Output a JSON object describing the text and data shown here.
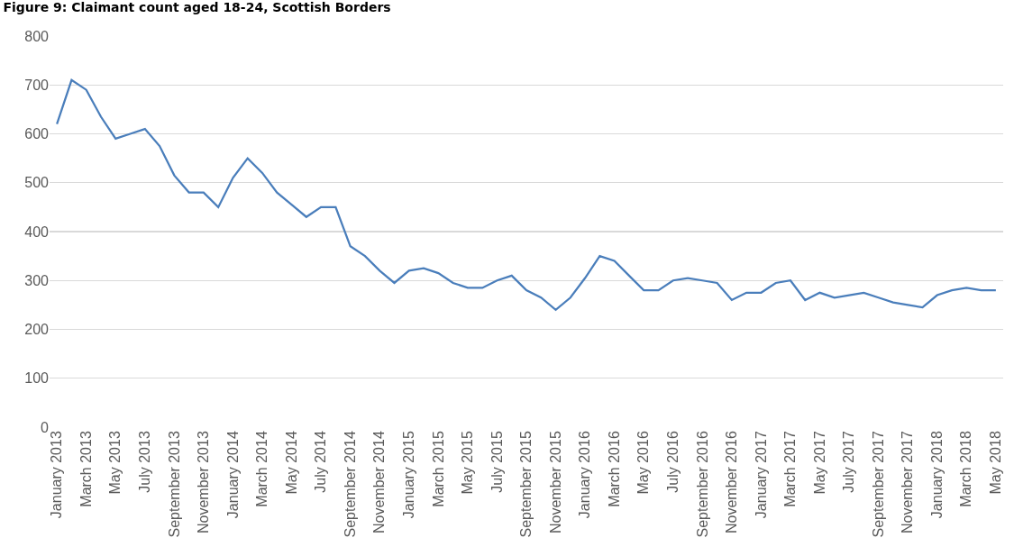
{
  "chart_data": {
    "type": "line",
    "title": "Figure 9: Claimant count aged 18-24, Scottish Borders",
    "categories": [
      "January 2013",
      null,
      "March 2013",
      null,
      "May 2013",
      null,
      "July 2013",
      null,
      "September 2013",
      null,
      "November 2013",
      null,
      "January 2014",
      null,
      "March 2014",
      null,
      "May 2014",
      null,
      "July 2014",
      null,
      "September 2014",
      null,
      "November 2014",
      null,
      "January 2015",
      null,
      "March 2015",
      null,
      "May 2015",
      null,
      "July 2015",
      null,
      "September 2015",
      null,
      "November 2015",
      null,
      "January 2016",
      null,
      "March 2016",
      null,
      "May 2016",
      null,
      "July 2016",
      null,
      "September 2016",
      null,
      "November 2016",
      null,
      "January 2017",
      null,
      "March 2017",
      null,
      "May 2017",
      null,
      "July 2017",
      null,
      "September 2017",
      null,
      "November 2017",
      null,
      "January 2018",
      null,
      "March 2018",
      null,
      "May 2018"
    ],
    "series": [
      {
        "color": "#4a7ebb",
        "values": [
          620,
          710,
          690,
          635,
          590,
          600,
          610,
          575,
          515,
          480,
          480,
          450,
          510,
          550,
          520,
          480,
          455,
          430,
          450,
          450,
          370,
          350,
          320,
          295,
          320,
          325,
          315,
          295,
          285,
          285,
          300,
          310,
          280,
          265,
          240,
          265,
          305,
          350,
          340,
          310,
          280,
          280,
          300,
          305,
          300,
          295,
          260,
          275,
          275,
          295,
          300,
          260,
          275,
          265,
          270,
          275,
          265,
          255,
          250,
          245,
          270,
          280,
          285,
          280,
          280
        ]
      }
    ],
    "ylim": [
      0,
      800
    ],
    "yticks": [
      0,
      100,
      200,
      300,
      400,
      500,
      600,
      700,
      800
    ],
    "grid": "y",
    "marker": "none",
    "line_style": "solid"
  }
}
